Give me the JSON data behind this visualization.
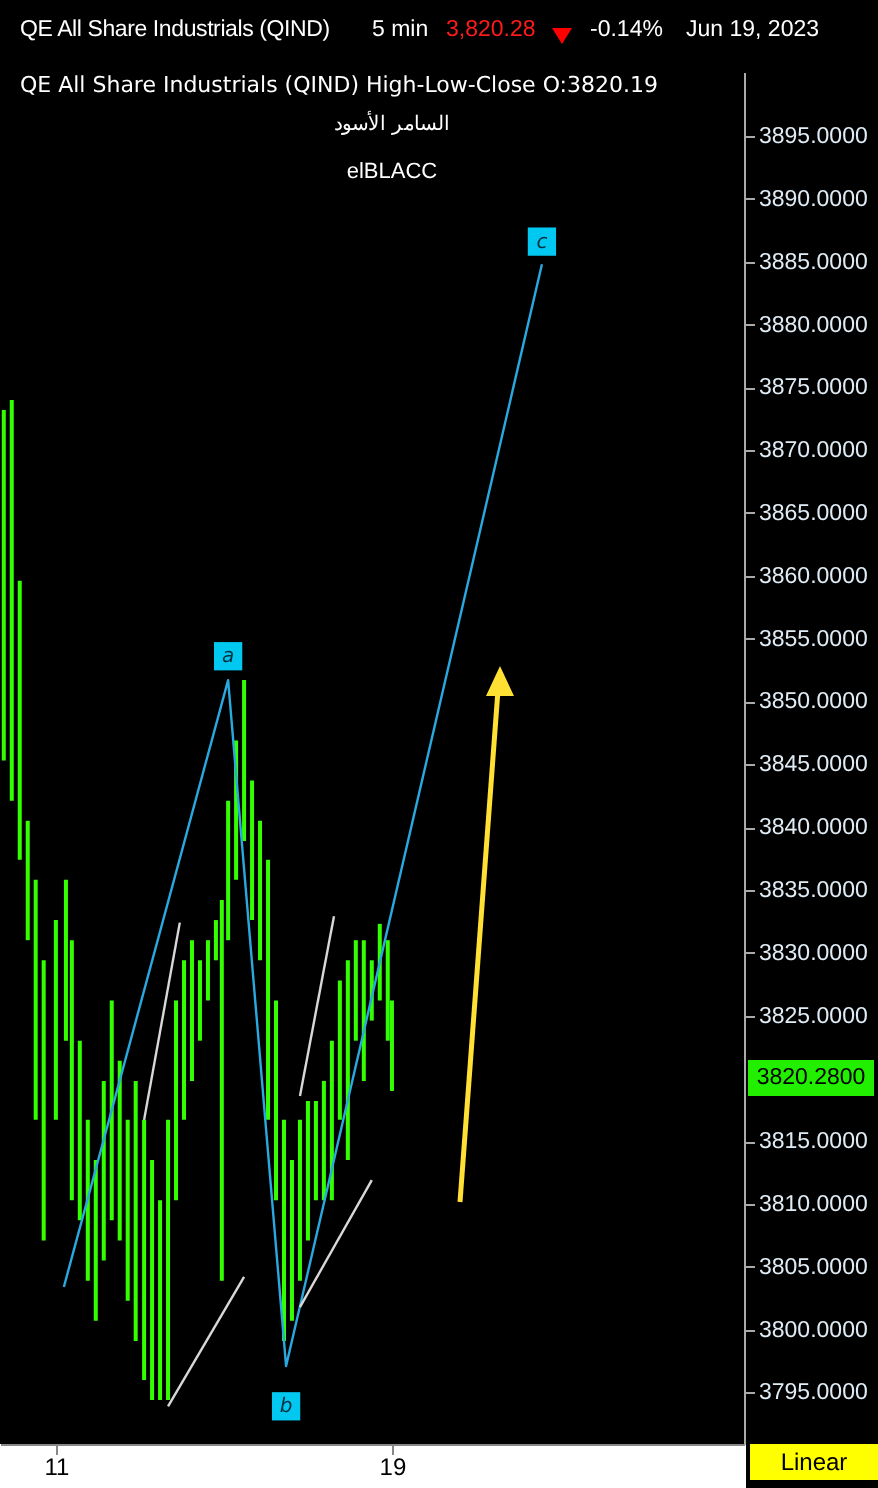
{
  "chart_data": {
    "type": "bar",
    "title": "QE All Share Industrials (QIND)",
    "subtitle": "QE All Share Industrials (QIND) High-Low-Close O:3820.19",
    "annotations": [
      "5 min",
      "3,820.28",
      "-0.14%",
      "Jun 19, 2023",
      "السامر الأسود",
      "elBLACC",
      "Linear",
      {
        "text": "a",
        "x": 15.1,
        "y": 3853.6
      },
      {
        "text": "b",
        "x": 16.48,
        "y": 3793.9
      },
      {
        "text": "c",
        "x": 22.57,
        "y": 3886.6
      },
      "3820.2800"
    ],
    "xlim": [
      9.67,
      27.38
    ],
    "xticks": [
      11,
      19
    ],
    "ylim": [
      3790.9,
      3900.1
    ],
    "yticks": [
      {
        "value": 3795,
        "label": "3795.0000"
      },
      {
        "value": 3800,
        "label": "3800.0000"
      },
      {
        "value": 3805,
        "label": "3805.0000"
      },
      {
        "value": 3810,
        "label": "3810.0000"
      },
      {
        "value": 3815,
        "label": "3815.0000"
      },
      {
        "value": 3825,
        "label": "3825.0000"
      },
      {
        "value": 3830,
        "label": "3830.0000"
      },
      {
        "value": 3835,
        "label": "3835.0000"
      },
      {
        "value": 3840,
        "label": "3840.0000"
      },
      {
        "value": 3845,
        "label": "3845.0000"
      },
      {
        "value": 3850,
        "label": "3850.0000"
      },
      {
        "value": 3855,
        "label": "3855.0000"
      },
      {
        "value": 3860,
        "label": "3860.0000"
      },
      {
        "value": 3865,
        "label": "3865.0000"
      },
      {
        "value": 3870,
        "label": "3870.0000"
      },
      {
        "value": 3875,
        "label": "3875.0000"
      },
      {
        "value": 3880,
        "label": "3880.0000"
      },
      {
        "value": 3885,
        "label": "3885.0000"
      },
      {
        "value": 3890,
        "label": "3890.0000"
      },
      {
        "value": 3895,
        "label": "3895.0000"
      }
    ],
    "series": [
      {
        "color": "#33ff00",
        "x": [
          9.76,
          9.95,
          10.14,
          10.33,
          10.52,
          10.71,
          11.0,
          11.24,
          11.38,
          11.57,
          11.76,
          11.95,
          12.14,
          12.33,
          12.52,
          12.71,
          12.9,
          13.1,
          13.29,
          13.48,
          13.67,
          13.86,
          14.05,
          14.24,
          14.43,
          14.62,
          14.81,
          14.95,
          15.1,
          15.29,
          15.48,
          15.67,
          15.86,
          16.05,
          16.24,
          16.43,
          16.62,
          16.81,
          17.0,
          17.19,
          17.38,
          17.57,
          17.76,
          17.95,
          18.14,
          18.33,
          18.52,
          18.71,
          18.9,
          19.0
        ],
        "base": [
          3845.3,
          3842.1,
          3837.4,
          3831.0,
          3816.7,
          3807.1,
          3816.7,
          3823.0,
          3810.3,
          3808.7,
          3803.9,
          3800.7,
          3805.5,
          3808.7,
          3807.1,
          3802.3,
          3799.1,
          3796.0,
          3794.4,
          3794.4,
          3794.4,
          3810.3,
          3816.7,
          3819.8,
          3823.0,
          3826.2,
          3829.4,
          3803.9,
          3831.0,
          3835.8,
          3838.9,
          3832.6,
          3829.4,
          3816.7,
          3810.3,
          3799.1,
          3800.7,
          3803.9,
          3807.1,
          3810.3,
          3810.3,
          3810.3,
          3816.7,
          3813.5,
          3823.0,
          3819.8,
          3824.6,
          3826.2,
          3823.0,
          3819.0
        ],
        "values": [
          27.9,
          31.9,
          22.2,
          9.5,
          19.1,
          22.3,
          15.9,
          12.8,
          20.7,
          14.3,
          12.8,
          12.8,
          14.3,
          17.5,
          14.3,
          14.4,
          20.7,
          20.7,
          19.1,
          15.9,
          22.3,
          15.9,
          12.7,
          11.2,
          6.4,
          4.8,
          3.2,
          30.3,
          11.1,
          11.1,
          12.8,
          11.1,
          11.1,
          20.7,
          15.9,
          17.6,
          12.8,
          12.8,
          11.1,
          7.9,
          9.5,
          12.7,
          11.1,
          15.9,
          8.0,
          11.2,
          4.8,
          6.1,
          8.0,
          7.2
        ]
      },
      {
        "type": "line",
        "color": "#29a9e0",
        "x": [
          11.19,
          15.1,
          16.48,
          22.57
        ],
        "values": [
          3803.4,
          3851.7,
          3797.1,
          3884.8
        ]
      },
      {
        "type": "line",
        "color": "#d8d8d8",
        "x": [
          13.1,
          13.95
        ],
        "values": [
          3816.7,
          3832.4
        ]
      },
      {
        "type": "line",
        "color": "#d8d8d8",
        "x": [
          13.67,
          15.48
        ],
        "values": [
          3793.9,
          3804.2
        ]
      },
      {
        "type": "line",
        "color": "#d8d8d8",
        "x": [
          16.81,
          17.62
        ],
        "values": [
          3818.6,
          3832.9
        ]
      },
      {
        "type": "line",
        "color": "#d8d8d8",
        "x": [
          16.81,
          18.52
        ],
        "values": [
          3801.8,
          3811.9
        ]
      }
    ]
  }
}
